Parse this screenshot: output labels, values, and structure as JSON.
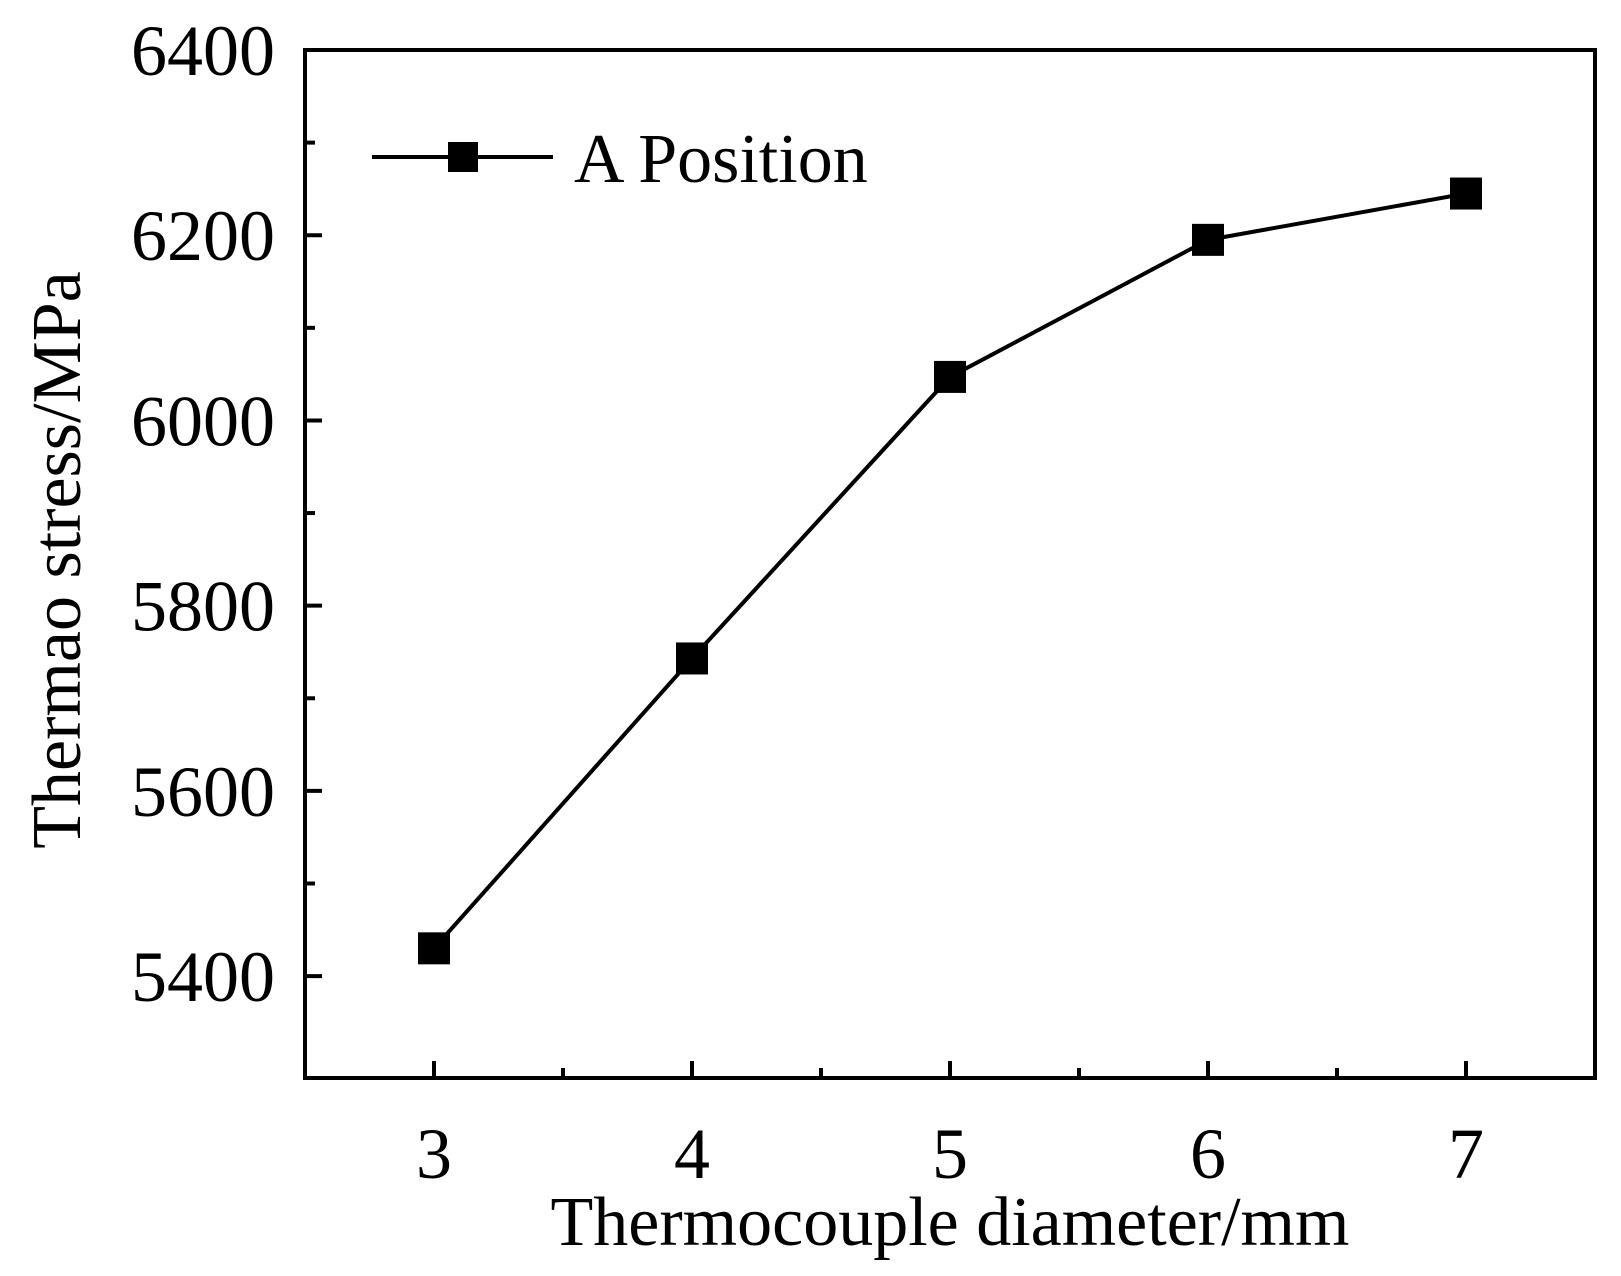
{
  "chart_data": {
    "type": "line",
    "xlabel": "Thermocouple diameter/mm",
    "ylabel": "Thermao stress/MPa",
    "xlim": [
      2.5,
      7.5
    ],
    "ylim": [
      5290,
      6400
    ],
    "xticks": [
      3,
      4,
      5,
      6,
      7
    ],
    "xtick_labels": [
      "3",
      "4",
      "5",
      "6",
      "7"
    ],
    "xminor_ticks": [
      3.5,
      4.5,
      5.5,
      6.5
    ],
    "yticks": [
      5400,
      5600,
      5800,
      6000,
      6200,
      6400
    ],
    "ytick_labels": [
      "5400",
      "5600",
      "5800",
      "6000",
      "6200",
      "6400"
    ],
    "yminor_ticks": [
      5500,
      5700,
      5900,
      6100,
      6300
    ],
    "grid": false,
    "legend_position": "top-left",
    "series": [
      {
        "name": "A Position",
        "marker": "square",
        "color": "#000000",
        "x": [
          3,
          4,
          5,
          6,
          7
        ],
        "y": [
          5430,
          5743,
          6047,
          6195,
          6245
        ]
      }
    ]
  }
}
